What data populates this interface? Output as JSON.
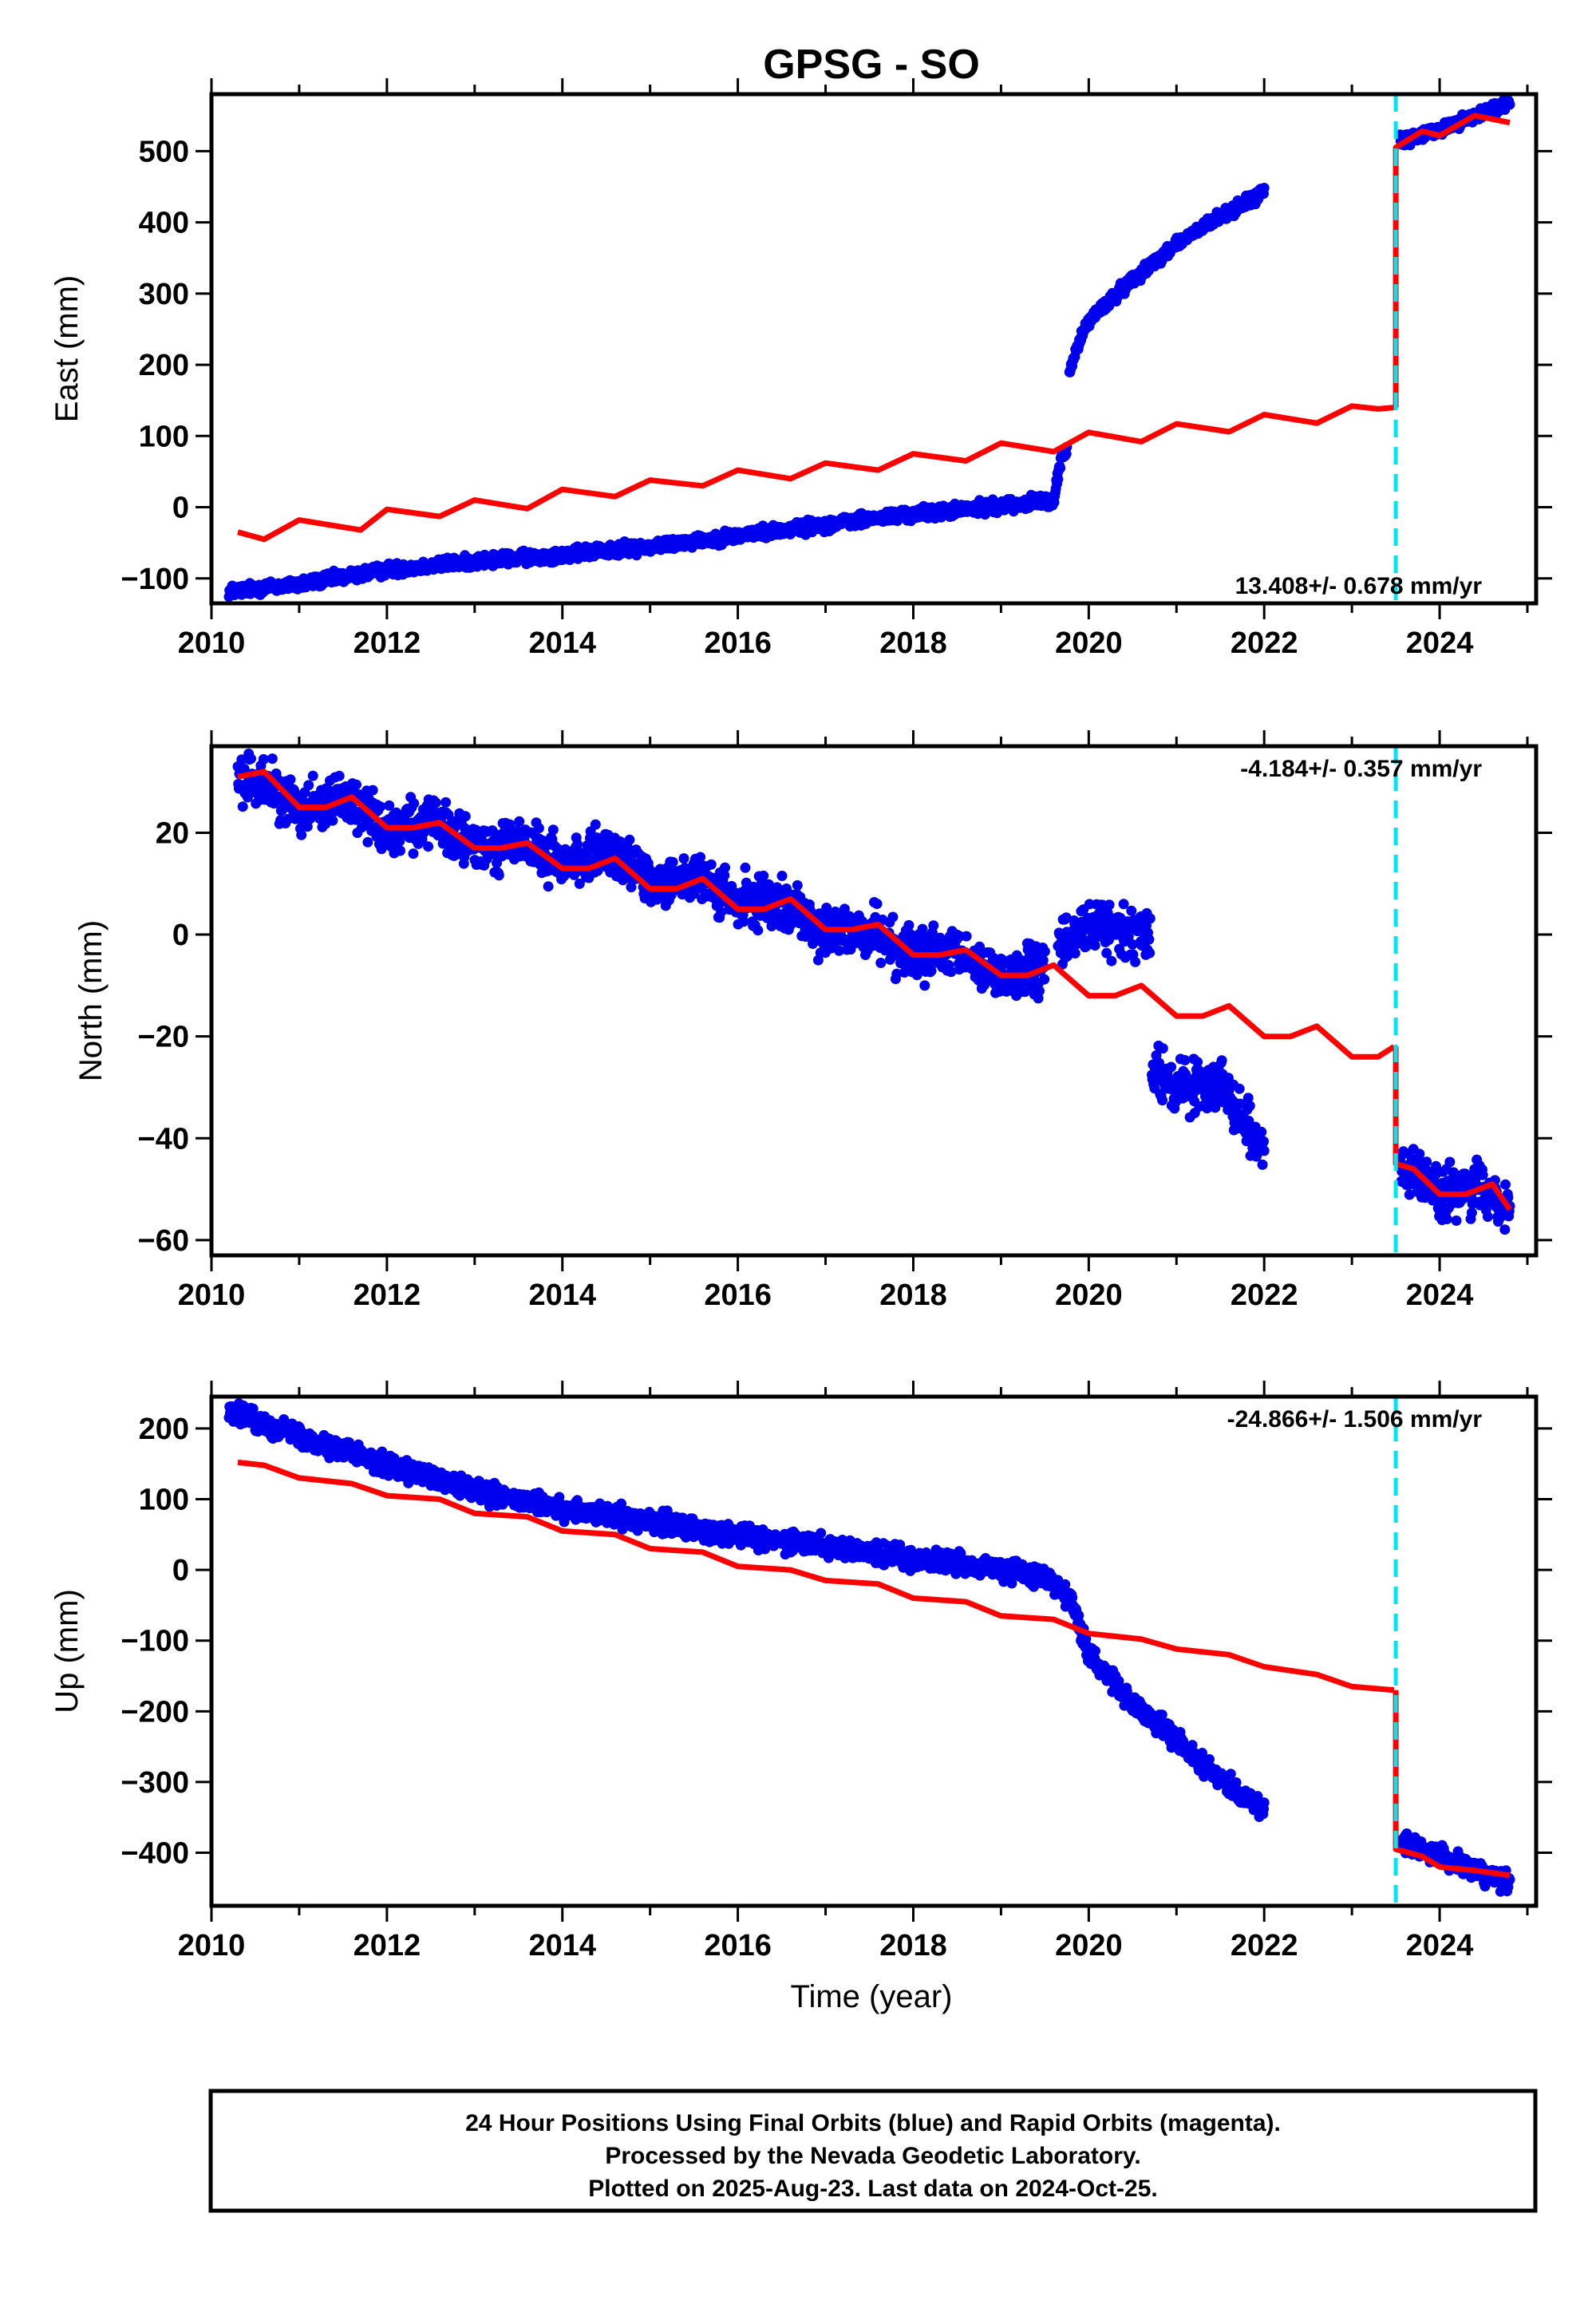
{
  "title": "GPSG - SO",
  "xlabel": "Time (year)",
  "x_ticks": [
    2010,
    2012,
    2014,
    2016,
    2018,
    2020,
    2022,
    2024
  ],
  "xlim": [
    2010,
    2025.1
  ],
  "equipment_change_year": 2023.5,
  "colors": {
    "data": "#0000ee",
    "model": "#ff0000",
    "equipment_line": "#00e5ee",
    "frame": "#000000"
  },
  "chart_data": [
    {
      "type": "scatter",
      "panel": "east",
      "ylabel": "East (mm)",
      "ylim": [
        -135,
        580
      ],
      "y_ticks": [
        -100,
        0,
        100,
        200,
        300,
        400,
        500
      ],
      "rate_text": "13.408+/- 0.678 mm/yr",
      "series": [
        {
          "kind": "daily_positions",
          "spread": 7,
          "segments": [
            [
              [
                2010.2,
                -118
              ],
              [
                2011.0,
                -108
              ],
              [
                2012.0,
                -88
              ],
              [
                2013.0,
                -76
              ],
              [
                2014.0,
                -67
              ],
              [
                2015.0,
                -55
              ],
              [
                2016.0,
                -40
              ],
              [
                2017.0,
                -24
              ],
              [
                2018.0,
                -10
              ],
              [
                2019.0,
                2
              ],
              [
                2019.6,
                10
              ],
              [
                2019.68,
                66
              ],
              [
                2019.75,
                78
              ]
            ],
            [
              [
                2019.78,
                190
              ],
              [
                2019.9,
                235
              ],
              [
                2020.0,
                262
              ],
              [
                2020.5,
                320
              ],
              [
                2021.0,
                370
              ],
              [
                2021.5,
                408
              ],
              [
                2022.0,
                442
              ]
            ],
            [
              [
                2023.55,
                513
              ],
              [
                2024.0,
                530
              ],
              [
                2024.5,
                555
              ],
              [
                2024.8,
                565
              ]
            ]
          ]
        },
        {
          "kind": "model",
          "segments": [
            [
              [
                2010.3,
                -35
              ],
              [
                2010.6,
                -45
              ],
              [
                2011.0,
                -18
              ],
              [
                2011.7,
                -32
              ],
              [
                2012.0,
                -3
              ],
              [
                2012.6,
                -13
              ],
              [
                2013.0,
                10
              ],
              [
                2013.6,
                -2
              ],
              [
                2014.0,
                25
              ],
              [
                2014.6,
                15
              ],
              [
                2015.0,
                38
              ],
              [
                2015.6,
                30
              ],
              [
                2016.0,
                52
              ],
              [
                2016.6,
                40
              ],
              [
                2017.0,
                62
              ],
              [
                2017.6,
                52
              ],
              [
                2018.0,
                75
              ],
              [
                2018.6,
                65
              ],
              [
                2019.0,
                90
              ],
              [
                2019.6,
                78
              ],
              [
                2020.0,
                105
              ],
              [
                2020.6,
                92
              ],
              [
                2021.0,
                117
              ],
              [
                2021.6,
                106
              ],
              [
                2022.0,
                130
              ],
              [
                2022.6,
                118
              ],
              [
                2023.0,
                142
              ],
              [
                2023.3,
                138
              ],
              [
                2023.48,
                140
              ]
            ],
            [
              [
                2023.5,
                140
              ],
              [
                2023.5,
                505
              ],
              [
                2023.8,
                528
              ],
              [
                2024.0,
                522
              ],
              [
                2024.4,
                550
              ],
              [
                2024.8,
                540
              ]
            ]
          ]
        }
      ]
    },
    {
      "type": "scatter",
      "panel": "north",
      "ylabel": "North (mm)",
      "ylim": [
        -63,
        37
      ],
      "y_ticks": [
        -60,
        -40,
        -20,
        0,
        20
      ],
      "rate_text": "-4.184+/- 0.357 mm/yr",
      "series": [
        {
          "kind": "daily_positions",
          "spread": 4,
          "segments": [
            [
              [
                2010.3,
                31
              ],
              [
                2010.6,
                30
              ],
              [
                2011.0,
                25
              ],
              [
                2011.5,
                27
              ],
              [
                2012.0,
                21
              ],
              [
                2012.5,
                22
              ],
              [
                2013.0,
                17
              ],
              [
                2013.5,
                18
              ],
              [
                2014.0,
                14
              ],
              [
                2014.5,
                16
              ],
              [
                2015.0,
                11
              ],
              [
                2015.5,
                11
              ],
              [
                2016.0,
                6
              ],
              [
                2016.5,
                7
              ],
              [
                2017.0,
                0
              ],
              [
                2017.5,
                1
              ],
              [
                2018.0,
                -4
              ],
              [
                2018.5,
                -4
              ],
              [
                2019.0,
                -8
              ],
              [
                2019.5,
                -7
              ]
            ],
            [
              [
                2019.65,
                -2
              ],
              [
                2020.0,
                2
              ],
              [
                2020.3,
                1
              ],
              [
                2020.7,
                0
              ]
            ],
            [
              [
                2020.72,
                -27
              ],
              [
                2021.0,
                -30
              ],
              [
                2021.5,
                -29
              ],
              [
                2021.8,
                -37
              ],
              [
                2022.0,
                -42
              ]
            ],
            [
              [
                2023.55,
                -45
              ],
              [
                2023.8,
                -48
              ],
              [
                2024.0,
                -51
              ],
              [
                2024.4,
                -50
              ],
              [
                2024.8,
                -53
              ]
            ]
          ]
        },
        {
          "kind": "model",
          "segments": [
            [
              [
                2010.3,
                31
              ],
              [
                2010.6,
                32
              ],
              [
                2011.0,
                25
              ],
              [
                2011.3,
                25
              ],
              [
                2011.6,
                27
              ],
              [
                2012.0,
                21
              ],
              [
                2012.3,
                21
              ],
              [
                2012.6,
                22
              ],
              [
                2013.0,
                17
              ],
              [
                2013.3,
                17
              ],
              [
                2013.6,
                18
              ],
              [
                2014.0,
                13
              ],
              [
                2014.3,
                13
              ],
              [
                2014.6,
                15
              ],
              [
                2015.0,
                9
              ],
              [
                2015.3,
                9
              ],
              [
                2015.6,
                11
              ],
              [
                2016.0,
                5
              ],
              [
                2016.3,
                5
              ],
              [
                2016.6,
                7
              ],
              [
                2017.0,
                1
              ],
              [
                2017.3,
                1
              ],
              [
                2017.6,
                2
              ],
              [
                2018.0,
                -4
              ],
              [
                2018.3,
                -4
              ],
              [
                2018.6,
                -3
              ],
              [
                2019.0,
                -8
              ],
              [
                2019.3,
                -8
              ],
              [
                2019.6,
                -6
              ],
              [
                2020.0,
                -12
              ],
              [
                2020.3,
                -12
              ],
              [
                2020.6,
                -10
              ],
              [
                2021.0,
                -16
              ],
              [
                2021.3,
                -16
              ],
              [
                2021.6,
                -14
              ],
              [
                2022.0,
                -20
              ],
              [
                2022.3,
                -20
              ],
              [
                2022.6,
                -18
              ],
              [
                2023.0,
                -24
              ],
              [
                2023.3,
                -24
              ],
              [
                2023.48,
                -22
              ]
            ],
            [
              [
                2023.5,
                -22
              ],
              [
                2023.5,
                -45
              ],
              [
                2023.7,
                -46
              ],
              [
                2024.0,
                -51
              ],
              [
                2024.3,
                -51
              ],
              [
                2024.6,
                -49
              ],
              [
                2024.8,
                -54
              ]
            ]
          ]
        }
      ]
    },
    {
      "type": "scatter",
      "panel": "up",
      "ylabel": "Up (mm)",
      "ylim": [
        -475,
        245
      ],
      "y_ticks": [
        -400,
        -300,
        -200,
        -100,
        0,
        100,
        200
      ],
      "rate_text": "-24.866+/- 1.506 mm/yr",
      "series": [
        {
          "kind": "daily_positions",
          "spread": 12,
          "segments": [
            [
              [
                2010.2,
                225
              ],
              [
                2011.0,
                190
              ],
              [
                2012.0,
                150
              ],
              [
                2013.0,
                110
              ],
              [
                2014.0,
                85
              ],
              [
                2015.0,
                70
              ],
              [
                2016.0,
                50
              ],
              [
                2017.0,
                35
              ],
              [
                2018.0,
                15
              ],
              [
                2019.0,
                0
              ],
              [
                2019.5,
                -10
              ],
              [
                2019.8,
                -40
              ],
              [
                2020.0,
                -120
              ],
              [
                2020.5,
                -190
              ],
              [
                2021.0,
                -240
              ],
              [
                2021.5,
                -295
              ],
              [
                2022.0,
                -340
              ]
            ],
            [
              [
                2023.55,
                -385
              ],
              [
                2024.0,
                -405
              ],
              [
                2024.5,
                -430
              ],
              [
                2024.8,
                -440
              ]
            ]
          ]
        },
        {
          "kind": "model",
          "segments": [
            [
              [
                2010.3,
                152
              ],
              [
                2010.6,
                148
              ],
              [
                2011.0,
                130
              ],
              [
                2011.6,
                122
              ],
              [
                2012.0,
                105
              ],
              [
                2012.6,
                100
              ],
              [
                2013.0,
                80
              ],
              [
                2013.6,
                75
              ],
              [
                2014.0,
                55
              ],
              [
                2014.6,
                50
              ],
              [
                2015.0,
                30
              ],
              [
                2015.6,
                25
              ],
              [
                2016.0,
                5
              ],
              [
                2016.6,
                0
              ],
              [
                2017.0,
                -15
              ],
              [
                2017.6,
                -20
              ],
              [
                2018.0,
                -40
              ],
              [
                2018.6,
                -45
              ],
              [
                2019.0,
                -65
              ],
              [
                2019.6,
                -70
              ],
              [
                2020.0,
                -90
              ],
              [
                2020.6,
                -98
              ],
              [
                2021.0,
                -112
              ],
              [
                2021.6,
                -120
              ],
              [
                2022.0,
                -137
              ],
              [
                2022.6,
                -148
              ],
              [
                2023.0,
                -165
              ],
              [
                2023.48,
                -170
              ]
            ],
            [
              [
                2023.5,
                -170
              ],
              [
                2023.5,
                -395
              ],
              [
                2023.8,
                -405
              ],
              [
                2024.0,
                -420
              ],
              [
                2024.4,
                -425
              ],
              [
                2024.8,
                -432
              ]
            ]
          ]
        }
      ]
    }
  ],
  "footer": {
    "line1": "24 Hour Positions Using Final Orbits (blue) and Rapid Orbits (magenta).",
    "line2": "Processed by the Nevada Geodetic Laboratory.",
    "line3": "Plotted on 2025-Aug-23. Last data on 2024-Oct-25."
  }
}
